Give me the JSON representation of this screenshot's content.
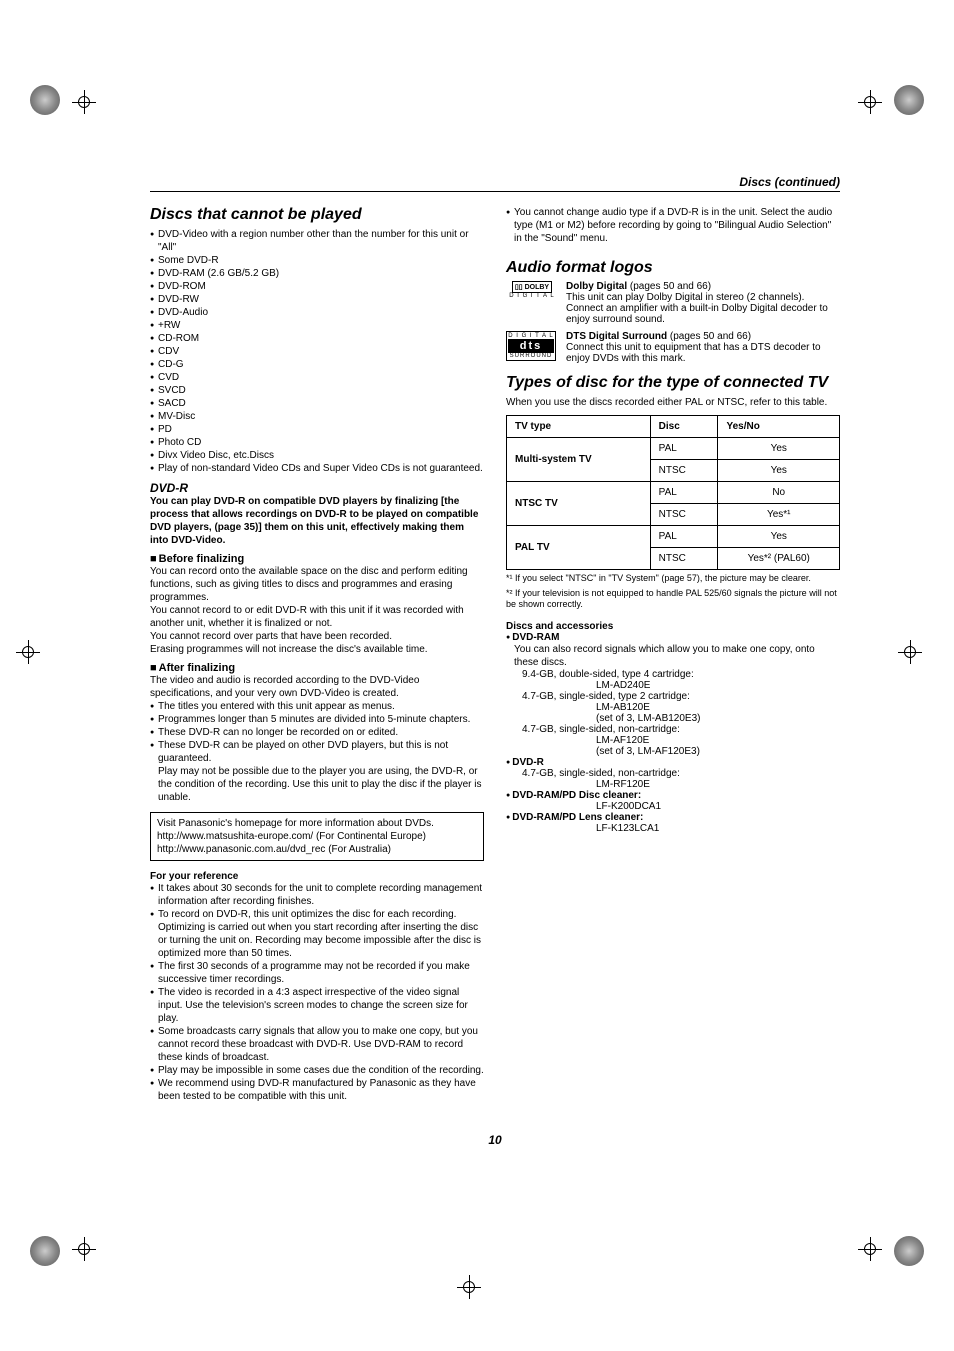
{
  "header": "Discs (continued)",
  "col1": {
    "h1": "Discs that cannot be played",
    "cannot_play": [
      "DVD-Video with a region number other than the number for this unit or \"All\"",
      "Some DVD-R",
      "DVD-RAM (2.6 GB/5.2 GB)",
      "DVD-ROM",
      "DVD-RW",
      "DVD-Audio",
      "+RW",
      "CD-ROM",
      "CDV",
      "CD-G",
      "CVD",
      "SVCD",
      "SACD",
      "MV-Disc",
      "PD",
      "Photo CD",
      "Divx Video Disc, etc.Discs",
      "Play of non-standard Video CDs and Super Video CDs is not guaranteed."
    ],
    "dvdr_h": "DVD-R",
    "dvdr_intro": "You can play DVD-R on compatible DVD players by finalizing [the process that allows recordings on DVD-R to be played on compatible DVD players, (page 35)] them on this unit, effectively making them into DVD-Video.",
    "before_h": "Before finalizing",
    "before_p1": "You can record onto the available space on the disc and perform editing functions, such as giving titles to discs and programmes and erasing programmes.",
    "before_p2": "You cannot record to or edit DVD-R with this unit if it was recorded with another unit, whether it is finalized or not.",
    "before_p3": "You cannot record over parts that have been recorded.",
    "before_p4": "Erasing programmes will not increase the disc's available time.",
    "after_h": "After finalizing",
    "after_p1": "The video and audio is recorded according to the DVD-Video specifications, and your very own DVD-Video is created.",
    "after_list": [
      "The titles you entered with this unit appear as menus.",
      "Programmes longer than 5 minutes are divided into 5-minute chapters.",
      "These DVD-R can no longer be recorded on or edited.",
      "These DVD-R can be played on other DVD players, but this is not guaranteed."
    ],
    "after_p2": "Play may not be possible due to the player you are using, the DVD-R, or the condition of the recording. Use this unit to play the disc if the player is unable.",
    "box1": "Visit Panasonic's homepage for more information about DVDs.",
    "box2": "http://www.matsushita-europe.com/ (For Continental Europe)",
    "box3": "http://www.panasonic.com.au/dvd_rec (For Australia)",
    "ref_h": "For your reference",
    "ref_list": [
      "It takes about 30 seconds for the unit to complete recording management information after recording finishes.",
      "To record on DVD-R, this unit optimizes the disc for each recording. Optimizing is carried out when you start recording after inserting the disc or turning the unit on. Recording may become impossible after the disc is optimized more than 50 times.",
      "The first 30 seconds of a programme may not be recorded if you make successive timer recordings.",
      "The video is recorded in a 4:3 aspect irrespective of the video signal input. Use the television's screen modes to change the screen size for play.",
      "Some broadcasts carry signals that allow you to make one copy, but you cannot record these broadcast with DVD-R. Use DVD-RAM to record these kinds of broadcast.",
      "Play may be impossible in some cases due the condition of the recording.",
      "We recommend using DVD-R manufactured by Panasonic as they have been tested to be compatible with this unit."
    ]
  },
  "col2": {
    "top_note": "You cannot change audio type if a DVD-R is in the unit. Select the audio type (M1 or M2) before recording by going to \"Bilingual Audio Selection\" in the \"Sound\" menu.",
    "audio_h": "Audio format logos",
    "dolby_label": "DOLBY",
    "dolby_sub": "D I G I T A L",
    "dolby_title": "Dolby Digital",
    "dolby_pages": " (pages 50 and 66)",
    "dolby_text": "This unit can play Dolby Digital in stereo (2 channels). Connect an amplifier with a built-in Dolby Digital decoder to enjoy surround sound.",
    "dts_top": "D I G I T A L",
    "dts_mid": "dts",
    "dts_bot": "SURROUND",
    "dts_title": "DTS Digital Surround",
    "dts_pages": " (pages 50 and 66)",
    "dts_text": "Connect this unit to equipment that has a DTS decoder to enjoy DVDs with this mark.",
    "types_h": "Types of disc for the type of connected TV",
    "types_intro": "When you use the discs recorded either PAL or NTSC, refer to this table.",
    "table": {
      "headers": [
        "TV type",
        "Disc",
        "Yes/No"
      ],
      "rows": [
        {
          "tv": "Multi-system TV",
          "disc": "PAL",
          "yn": "Yes"
        },
        {
          "disc": "NTSC",
          "yn": "Yes"
        },
        {
          "tv": "NTSC TV",
          "disc": "PAL",
          "yn": "No"
        },
        {
          "disc": "NTSC",
          "yn": "Yes*¹"
        },
        {
          "tv": "PAL TV",
          "disc": "PAL",
          "yn": "Yes"
        },
        {
          "disc": "NTSC",
          "yn": "Yes*² (PAL60)"
        }
      ]
    },
    "fn1": "*¹ If you select \"NTSC\" in \"TV System\" (page 57), the picture may be clearer.",
    "fn2": "*² If your television is not equipped to handle PAL 525/60 signals the picture will not be shown correctly.",
    "acc_h": "Discs and accessories",
    "acc": [
      {
        "label": "DVD-RAM",
        "desc": "You can also record signals which allow you to make one copy, onto these discs.",
        "lines": [
          {
            "t": "9.4-GB, double-sided, type 4 cartridge:",
            "cls": "indent1"
          },
          {
            "t": "LM-AD240E",
            "cls": "indent2"
          },
          {
            "t": "4.7-GB, single-sided, type 2 cartridge:",
            "cls": "indent1"
          },
          {
            "t": "LM-AB120E",
            "cls": "indent2"
          },
          {
            "t": "(set of 3, LM-AB120E3)",
            "cls": "indent2"
          },
          {
            "t": "4.7-GB, single-sided, non-cartridge:",
            "cls": "indent1"
          },
          {
            "t": "LM-AF120E",
            "cls": "indent2"
          },
          {
            "t": "(set of 3, LM-AF120E3)",
            "cls": "indent2"
          }
        ]
      },
      {
        "label": "DVD-R",
        "lines": [
          {
            "t": "4.7-GB, single-sided, non-cartridge:",
            "cls": "indent1"
          },
          {
            "t": "LM-RF120E",
            "cls": "indent2"
          }
        ]
      },
      {
        "label": "DVD-RAM/PD Disc cleaner:",
        "lines": [
          {
            "t": "LF-K200DCA1",
            "cls": "indent2"
          }
        ]
      },
      {
        "label": "DVD-RAM/PD Lens cleaner:",
        "lines": [
          {
            "t": "LF-K123LCA1",
            "cls": "indent2"
          }
        ]
      }
    ]
  },
  "page_num": "10"
}
